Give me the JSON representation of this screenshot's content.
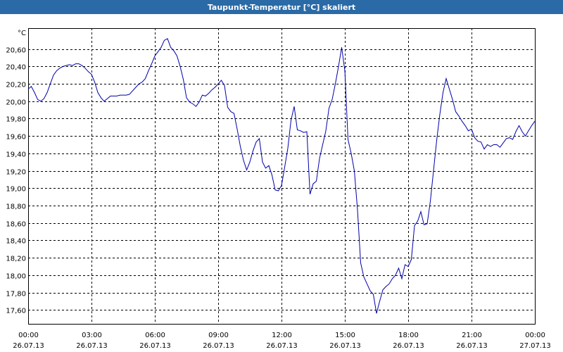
{
  "window": {
    "title": "Taupunkt-Temperatur [°C] skaliert"
  },
  "chart_data": {
    "type": "line",
    "title": "Taupunkt-Temperatur [°C] skaliert",
    "ylabel": "°C",
    "xlabel": "",
    "ylim": [
      17.44,
      20.84
    ],
    "xlim_hours": [
      0,
      24
    ],
    "grid": true,
    "y_ticks": [
      "20,60",
      "20,40",
      "20,20",
      "20,00",
      "19,80",
      "19,60",
      "19,40",
      "19,20",
      "19,00",
      "18,80",
      "18,60",
      "18,40",
      "18,20",
      "18,00",
      "17,80",
      "17,60"
    ],
    "y_tick_values": [
      20.6,
      20.4,
      20.2,
      20.0,
      19.8,
      19.6,
      19.4,
      19.2,
      19.0,
      18.8,
      18.6,
      18.4,
      18.2,
      18.0,
      17.8,
      17.6
    ],
    "x_ticks": [
      {
        "time": "00:00",
        "date": "26.07.13"
      },
      {
        "time": "03:00",
        "date": "26.07.13"
      },
      {
        "time": "06:00",
        "date": "26.07.13"
      },
      {
        "time": "09:00",
        "date": "26.07.13"
      },
      {
        "time": "12:00",
        "date": "26.07.13"
      },
      {
        "time": "15:00",
        "date": "26.07.13"
      },
      {
        "time": "18:00",
        "date": "26.07.13"
      },
      {
        "time": "21:00",
        "date": "26.07.13"
      },
      {
        "time": "00:00",
        "date": "27.07.13"
      }
    ],
    "x_tick_hours": [
      0,
      3,
      6,
      9,
      12,
      15,
      18,
      21,
      24
    ],
    "series": [
      {
        "color": "#0000aa",
        "points": [
          [
            0.0,
            20.14
          ],
          [
            0.15,
            20.17
          ],
          [
            0.3,
            20.1
          ],
          [
            0.45,
            20.02
          ],
          [
            0.6,
            20.0
          ],
          [
            0.75,
            20.03
          ],
          [
            0.9,
            20.1
          ],
          [
            1.05,
            20.2
          ],
          [
            1.2,
            20.3
          ],
          [
            1.35,
            20.35
          ],
          [
            1.5,
            20.38
          ],
          [
            1.65,
            20.4
          ],
          [
            1.8,
            20.41
          ],
          [
            1.95,
            20.42
          ],
          [
            2.1,
            20.41
          ],
          [
            2.25,
            20.43
          ],
          [
            2.4,
            20.43
          ],
          [
            2.55,
            20.41
          ],
          [
            2.7,
            20.38
          ],
          [
            2.85,
            20.34
          ],
          [
            3.0,
            20.31
          ],
          [
            3.15,
            20.22
          ],
          [
            3.3,
            20.1
          ],
          [
            3.45,
            20.04
          ],
          [
            3.6,
            20.0
          ],
          [
            3.75,
            20.03
          ],
          [
            3.9,
            20.06
          ],
          [
            4.05,
            20.06
          ],
          [
            4.2,
            20.06
          ],
          [
            4.35,
            20.07
          ],
          [
            4.5,
            20.07
          ],
          [
            4.65,
            20.07
          ],
          [
            4.8,
            20.08
          ],
          [
            4.95,
            20.12
          ],
          [
            5.1,
            20.16
          ],
          [
            5.25,
            20.2
          ],
          [
            5.4,
            20.22
          ],
          [
            5.55,
            20.26
          ],
          [
            5.7,
            20.35
          ],
          [
            5.85,
            20.43
          ],
          [
            6.0,
            20.52
          ],
          [
            6.15,
            20.57
          ],
          [
            6.3,
            20.62
          ],
          [
            6.45,
            20.7
          ],
          [
            6.6,
            20.72
          ],
          [
            6.75,
            20.62
          ],
          [
            6.9,
            20.58
          ],
          [
            7.05,
            20.52
          ],
          [
            7.2,
            20.4
          ],
          [
            7.35,
            20.25
          ],
          [
            7.5,
            20.04
          ],
          [
            7.65,
            19.99
          ],
          [
            7.8,
            19.97
          ],
          [
            7.95,
            19.94
          ],
          [
            8.1,
            19.99
          ],
          [
            8.25,
            20.07
          ],
          [
            8.4,
            20.06
          ],
          [
            8.55,
            20.09
          ],
          [
            8.7,
            20.13
          ],
          [
            8.85,
            20.16
          ],
          [
            9.0,
            20.2
          ],
          [
            9.15,
            20.24
          ],
          [
            9.3,
            20.18
          ],
          [
            9.45,
            19.93
          ],
          [
            9.6,
            19.88
          ],
          [
            9.75,
            19.86
          ],
          [
            9.9,
            19.68
          ],
          [
            10.05,
            19.48
          ],
          [
            10.2,
            19.32
          ],
          [
            10.35,
            19.21
          ],
          [
            10.5,
            19.3
          ],
          [
            10.65,
            19.43
          ],
          [
            10.8,
            19.53
          ],
          [
            10.95,
            19.57
          ],
          [
            11.1,
            19.3
          ],
          [
            11.25,
            19.23
          ],
          [
            11.4,
            19.26
          ],
          [
            11.55,
            19.15
          ],
          [
            11.7,
            18.98
          ],
          [
            11.85,
            18.97
          ],
          [
            12.0,
            19.03
          ],
          [
            12.15,
            19.24
          ],
          [
            12.3,
            19.46
          ],
          [
            12.45,
            19.78
          ],
          [
            12.6,
            19.94
          ],
          [
            12.75,
            19.67
          ],
          [
            12.9,
            19.66
          ],
          [
            13.05,
            19.64
          ],
          [
            13.2,
            19.65
          ],
          [
            13.35,
            18.93
          ],
          [
            13.5,
            19.05
          ],
          [
            13.65,
            19.08
          ],
          [
            13.8,
            19.34
          ],
          [
            13.95,
            19.5
          ],
          [
            14.1,
            19.66
          ],
          [
            14.25,
            19.92
          ],
          [
            14.4,
            20.02
          ],
          [
            14.55,
            20.2
          ],
          [
            14.7,
            20.4
          ],
          [
            14.85,
            20.62
          ],
          [
            15.0,
            20.35
          ],
          [
            15.15,
            19.56
          ],
          [
            15.3,
            19.4
          ],
          [
            15.45,
            19.2
          ],
          [
            15.6,
            18.75
          ],
          [
            15.75,
            18.14
          ],
          [
            15.9,
            17.98
          ],
          [
            16.05,
            17.9
          ],
          [
            16.2,
            17.82
          ],
          [
            16.35,
            17.78
          ],
          [
            16.5,
            17.56
          ],
          [
            16.65,
            17.7
          ],
          [
            16.8,
            17.83
          ],
          [
            16.95,
            17.87
          ],
          [
            17.1,
            17.9
          ],
          [
            17.25,
            17.96
          ],
          [
            17.4,
            18.0
          ],
          [
            17.55,
            18.08
          ],
          [
            17.7,
            17.96
          ],
          [
            17.85,
            18.12
          ],
          [
            18.0,
            18.1
          ],
          [
            18.15,
            18.18
          ],
          [
            18.3,
            18.57
          ],
          [
            18.45,
            18.62
          ],
          [
            18.6,
            18.73
          ],
          [
            18.75,
            18.58
          ],
          [
            18.9,
            18.59
          ],
          [
            19.05,
            18.85
          ],
          [
            19.2,
            19.2
          ],
          [
            19.35,
            19.55
          ],
          [
            19.5,
            19.85
          ],
          [
            19.65,
            20.1
          ],
          [
            19.8,
            20.26
          ],
          [
            19.95,
            20.14
          ],
          [
            20.1,
            20.02
          ],
          [
            20.25,
            19.88
          ],
          [
            20.4,
            19.83
          ],
          [
            20.55,
            19.77
          ],
          [
            20.7,
            19.72
          ],
          [
            20.85,
            19.66
          ],
          [
            21.0,
            19.68
          ],
          [
            21.15,
            19.58
          ],
          [
            21.3,
            19.54
          ],
          [
            21.45,
            19.53
          ],
          [
            21.6,
            19.45
          ],
          [
            21.75,
            19.5
          ],
          [
            21.9,
            19.48
          ],
          [
            22.05,
            19.5
          ],
          [
            22.2,
            19.5
          ],
          [
            22.35,
            19.47
          ],
          [
            22.5,
            19.52
          ],
          [
            22.65,
            19.57
          ],
          [
            22.8,
            19.58
          ],
          [
            22.95,
            19.56
          ],
          [
            23.1,
            19.65
          ],
          [
            23.25,
            19.72
          ],
          [
            23.4,
            19.65
          ],
          [
            23.55,
            19.6
          ],
          [
            23.7,
            19.66
          ],
          [
            23.85,
            19.72
          ],
          [
            24.0,
            19.77
          ]
        ]
      }
    ]
  }
}
